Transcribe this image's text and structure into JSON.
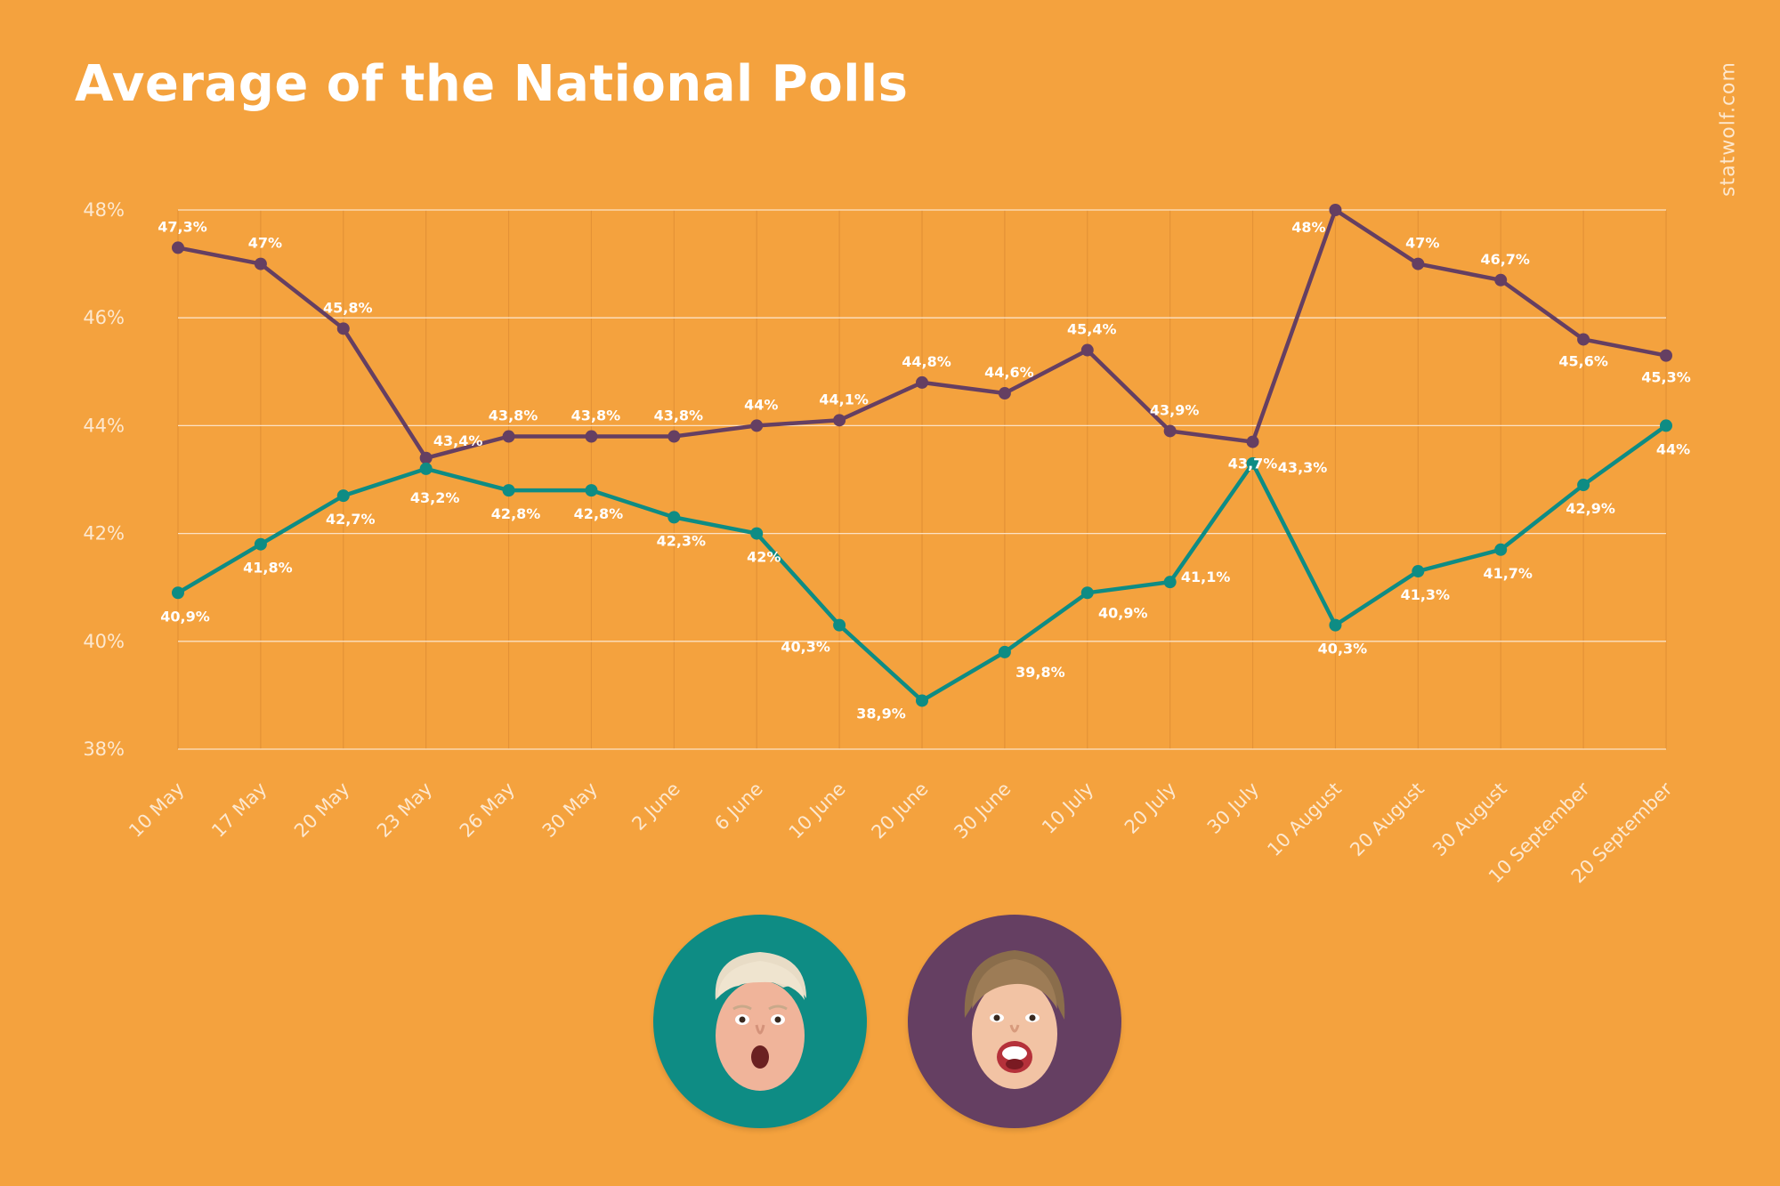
{
  "title": "Average of the National Polls",
  "credit": "statwolf.com",
  "colors": {
    "background": "#F4A23E",
    "teal": "#0E8C84",
    "purple": "#653F62",
    "grid": "#FCE2C4"
  },
  "chart_data": {
    "type": "line",
    "title": "Average of the National Polls",
    "categories": [
      "10 May",
      "17 May",
      "20 May",
      "23 May",
      "26 May",
      "30 May",
      "2 June",
      "6 June",
      "10 June",
      "20 June",
      "30 June",
      "10 July",
      "20 July",
      "30 July",
      "10 August",
      "20 August",
      "30 August",
      "10 September",
      "20 September"
    ],
    "ylim": [
      38,
      48
    ],
    "yticks": [
      38,
      40,
      42,
      44,
      46,
      48
    ],
    "ytick_labels": [
      "38%",
      "40%",
      "42%",
      "44%",
      "46%",
      "48%"
    ],
    "grid": true,
    "series": [
      {
        "color": "#653F62",
        "values": [
          47.3,
          47,
          45.8,
          43.4,
          43.8,
          43.8,
          43.8,
          44,
          44.1,
          44.8,
          44.6,
          45.4,
          43.9,
          43.7,
          48,
          47,
          46.7,
          45.6,
          45.3
        ],
        "labels": [
          "47,3%",
          "47%",
          "45,8%",
          "43,4%",
          "43,8%",
          "43,8%",
          "43,8%",
          "44%",
          "44,1%",
          "44,8%",
          "44,6%",
          "45,4%",
          "43,9%",
          "43,7%",
          "48%",
          "47%",
          "46,7%",
          "45,6%",
          "45,3%"
        ]
      },
      {
        "color": "#0E8C84",
        "values": [
          40.9,
          41.8,
          42.7,
          43.2,
          42.8,
          42.8,
          42.3,
          42,
          40.3,
          38.9,
          39.8,
          40.9,
          41.1,
          43.3,
          40.3,
          41.3,
          41.7,
          42.9,
          44
        ],
        "labels": [
          "40,9%",
          "41,8%",
          "42,7%",
          "43,2%",
          "42,8%",
          "42,8%",
          "42,3%",
          "42%",
          "40,3%",
          "38,9%",
          "39,8%",
          "40,9%",
          "41,1%",
          "43,3%",
          "40,3%",
          "41,3%",
          "41,7%",
          "42,9%",
          "44%"
        ]
      }
    ]
  },
  "avatars": [
    {
      "color": "#0E8C84",
      "icon": "trump-face-icon"
    },
    {
      "color": "#653F62",
      "icon": "clinton-face-icon"
    }
  ]
}
